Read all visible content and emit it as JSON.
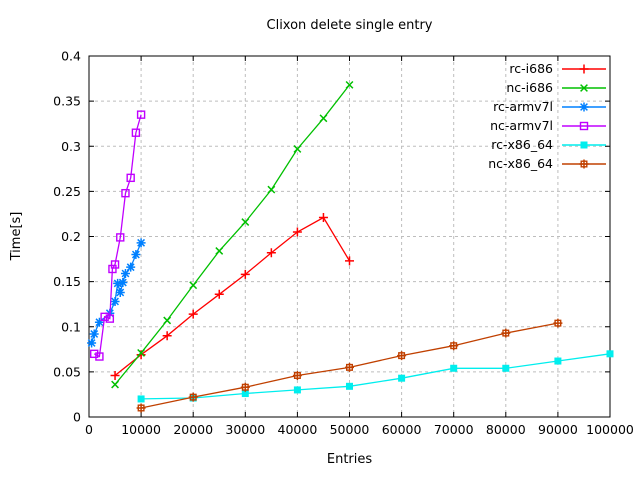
{
  "title": "Clixon delete single entry",
  "axes": {
    "x_label": "Entries",
    "y_label": "Time[s]",
    "x_ticks": [
      [
        0,
        "0"
      ],
      [
        10000,
        "10000"
      ],
      [
        20000,
        "20000"
      ],
      [
        30000,
        "30000"
      ],
      [
        40000,
        "40000"
      ],
      [
        50000,
        "50000"
      ],
      [
        60000,
        "60000"
      ],
      [
        70000,
        "70000"
      ],
      [
        80000,
        "80000"
      ],
      [
        90000,
        "90000"
      ],
      [
        100000,
        "100000"
      ]
    ],
    "y_ticks": [
      [
        0,
        "0"
      ],
      [
        0.05,
        "0.05"
      ],
      [
        0.1,
        "0.1"
      ],
      [
        0.15,
        "0.15"
      ],
      [
        0.2,
        "0.2"
      ],
      [
        0.25,
        "0.25"
      ],
      [
        0.3,
        "0.3"
      ],
      [
        0.35,
        "0.35"
      ],
      [
        0.4,
        "0.4"
      ]
    ]
  },
  "style": {
    "grid_color": "#bdbdbd",
    "border_color": "#000000",
    "background": "#ffffff"
  },
  "chart_data": {
    "type": "line",
    "title": "Clixon delete single entry",
    "xlabel": "Entries",
    "ylabel": "Time[s]",
    "xlim": [
      0,
      100000
    ],
    "ylim": [
      0,
      0.4
    ],
    "grid": true,
    "legend_position": "top-right-inside",
    "series": [
      {
        "name": "rc-i686",
        "color": "#ff0000",
        "marker": "plus",
        "points": [
          [
            5000,
            0.046
          ],
          [
            10000,
            0.069
          ],
          [
            15000,
            0.09
          ],
          [
            20000,
            0.114
          ],
          [
            25000,
            0.136
          ],
          [
            30000,
            0.158
          ],
          [
            35000,
            0.182
          ],
          [
            40000,
            0.205
          ],
          [
            45000,
            0.221
          ],
          [
            50000,
            0.173
          ]
        ]
      },
      {
        "name": "nc-i686",
        "color": "#00c000",
        "marker": "cross",
        "points": [
          [
            5000,
            0.036
          ],
          [
            10000,
            0.071
          ],
          [
            15000,
            0.107
          ],
          [
            20000,
            0.146
          ],
          [
            25000,
            0.184
          ],
          [
            30000,
            0.216
          ],
          [
            35000,
            0.252
          ],
          [
            40000,
            0.297
          ],
          [
            45000,
            0.331
          ],
          [
            50000,
            0.368
          ]
        ]
      },
      {
        "name": "rc-armv7l",
        "color": "#0080ff",
        "marker": "star",
        "points": [
          [
            500,
            0.082
          ],
          [
            1000,
            0.092
          ],
          [
            2000,
            0.105
          ],
          [
            4000,
            0.115
          ],
          [
            5000,
            0.128
          ],
          [
            5500,
            0.148
          ],
          [
            6000,
            0.138
          ],
          [
            6500,
            0.149
          ],
          [
            7000,
            0.159
          ],
          [
            8000,
            0.166
          ],
          [
            9000,
            0.18
          ],
          [
            10000,
            0.193
          ]
        ]
      },
      {
        "name": "nc-armv7l",
        "color": "#c000ff",
        "marker": "open-square",
        "points": [
          [
            1000,
            0.07
          ],
          [
            2000,
            0.067
          ],
          [
            3000,
            0.111
          ],
          [
            4000,
            0.109
          ],
          [
            4500,
            0.164
          ],
          [
            5000,
            0.169
          ],
          [
            6000,
            0.199
          ],
          [
            7000,
            0.248
          ],
          [
            8000,
            0.265
          ],
          [
            9000,
            0.315
          ],
          [
            10000,
            0.335
          ]
        ]
      },
      {
        "name": "rc-x86_64",
        "color": "#00eeee",
        "marker": "filled-square",
        "points": [
          [
            10000,
            0.02
          ],
          [
            20000,
            0.021
          ],
          [
            30000,
            0.026
          ],
          [
            40000,
            0.03
          ],
          [
            50000,
            0.034
          ],
          [
            60000,
            0.043
          ],
          [
            70000,
            0.054
          ],
          [
            80000,
            0.054
          ],
          [
            90000,
            0.062
          ],
          [
            100000,
            0.07
          ]
        ]
      },
      {
        "name": "nc-x86_64",
        "color": "#c04000",
        "marker": "box-plus",
        "points": [
          [
            10000,
            0.01
          ],
          [
            20000,
            0.022
          ],
          [
            30000,
            0.033
          ],
          [
            40000,
            0.046
          ],
          [
            50000,
            0.055
          ],
          [
            60000,
            0.068
          ],
          [
            70000,
            0.079
          ],
          [
            80000,
            0.093
          ],
          [
            90000,
            0.104
          ]
        ]
      }
    ]
  }
}
